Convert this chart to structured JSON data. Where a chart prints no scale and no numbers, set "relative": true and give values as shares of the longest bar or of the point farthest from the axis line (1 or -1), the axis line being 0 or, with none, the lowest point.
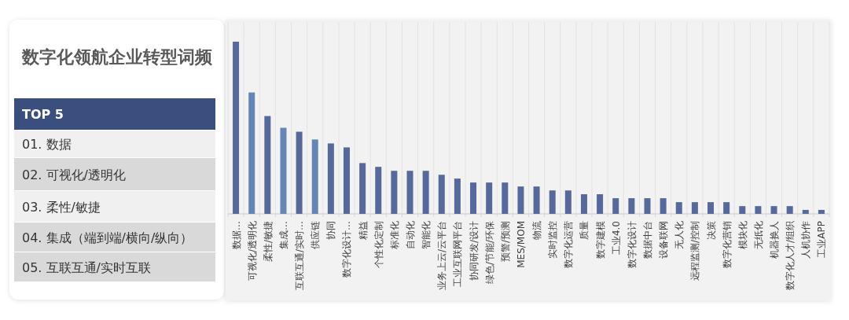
{
  "chart_data": {
    "type": "bar",
    "title": "数字化领航企业转型词频",
    "annotations": [
      "TOP 5",
      "01. 数据",
      "02. 可视化/透明化",
      "03. 柔性/敏捷",
      "04. 集成（端到端/横向/纵向）",
      "05. 互联互通/实时互联"
    ],
    "categories": [
      "数据…",
      "可视化/透明化",
      "柔性/敏捷",
      "集成…",
      "互联互通/实时…",
      "供应链",
      "协同",
      "数字化设计…",
      "精益",
      "个性化定制",
      "标准化",
      "自动化",
      "智能化",
      "业务上云/云平台",
      "工业互联网平台",
      "协同研发/设计",
      "绿色/节能/环保",
      "预警/预测",
      "MES/MOM",
      "物流",
      "实时监控",
      "数字化运营",
      "质量",
      "数字建模",
      "工业4.0",
      "数字化设计",
      "数据中台",
      "设备联网",
      "无人化",
      "远程监测/控制",
      "决策",
      "数字化营销",
      "模块化",
      "无纸化",
      "机器换人",
      "数字化人才/组织",
      "人机协作",
      "工业APP"
    ],
    "values": [
      1,
      0.705,
      0.568,
      0.5,
      0.477,
      0.432,
      0.409,
      0.386,
      0.295,
      0.273,
      0.25,
      0.25,
      0.25,
      0.227,
      0.205,
      0.182,
      0.182,
      0.182,
      0.159,
      0.159,
      0.136,
      0.136,
      0.114,
      0.114,
      0.091,
      0.091,
      0.091,
      0.091,
      0.068,
      0.068,
      0.068,
      0.068,
      0.045,
      0.045,
      0.045,
      0.045,
      0.023,
      0.023
    ],
    "colors": [
      "#56699a",
      "#6685b4",
      "#56699a",
      "#6685b4",
      "#56699a",
      "#6685b4",
      "#56699a",
      "#56699a",
      "#56699a",
      "#56699a",
      "#56699a",
      "#56699a",
      "#56699a",
      "#56699a",
      "#56699a",
      "#56699a",
      "#56699a",
      "#56699a",
      "#56699a",
      "#56699a",
      "#56699a",
      "#56699a",
      "#56699a",
      "#56699a",
      "#56699a",
      "#56699a",
      "#56699a",
      "#56699a",
      "#56699a",
      "#56699a",
      "#56699a",
      "#56699a",
      "#56699a",
      "#56699a",
      "#56699a",
      "#56699a",
      "#56699a",
      "#56699a"
    ],
    "relative": true,
    "grid": "x"
  }
}
